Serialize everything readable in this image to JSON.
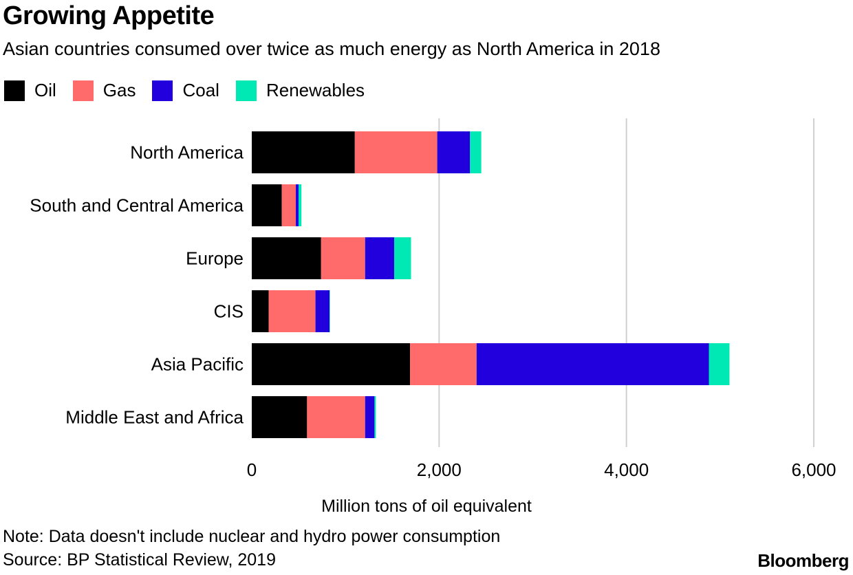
{
  "chart_data": {
    "type": "bar",
    "orientation": "horizontal",
    "stacked": true,
    "title": "Growing Appetite",
    "subtitle": "Asian countries consumed over twice as much energy as North America in 2018",
    "categories": [
      "North America",
      "South and Central America",
      "Europe",
      "CIS",
      "Asia Pacific",
      "Middle East and Africa"
    ],
    "series": [
      {
        "name": "Oil",
        "color": "#000000",
        "values": [
          1100,
          320,
          740,
          180,
          1690,
          590
        ]
      },
      {
        "name": "Gas",
        "color": "#ff6b6b",
        "values": [
          880,
          150,
          470,
          500,
          710,
          620
        ]
      },
      {
        "name": "Coal",
        "color": "#2200dd",
        "values": [
          350,
          30,
          310,
          150,
          2480,
          100
        ]
      },
      {
        "name": "Renewables",
        "color": "#00e8b4",
        "values": [
          120,
          30,
          180,
          5,
          220,
          15
        ]
      }
    ],
    "xlabel": "Million tons of oil equivalent",
    "xlim": [
      0,
      6000
    ],
    "xticks": [
      0,
      2000,
      4000,
      6000
    ],
    "xtick_labels": [
      "0",
      "2,000",
      "4,000",
      "6,000"
    ],
    "grid": true,
    "legend_position": "top-left",
    "note": "Note: Data doesn't include nuclear and hydro power consumption",
    "source": "Source: BP Statistical Review, 2019",
    "brand": "Bloomberg"
  }
}
